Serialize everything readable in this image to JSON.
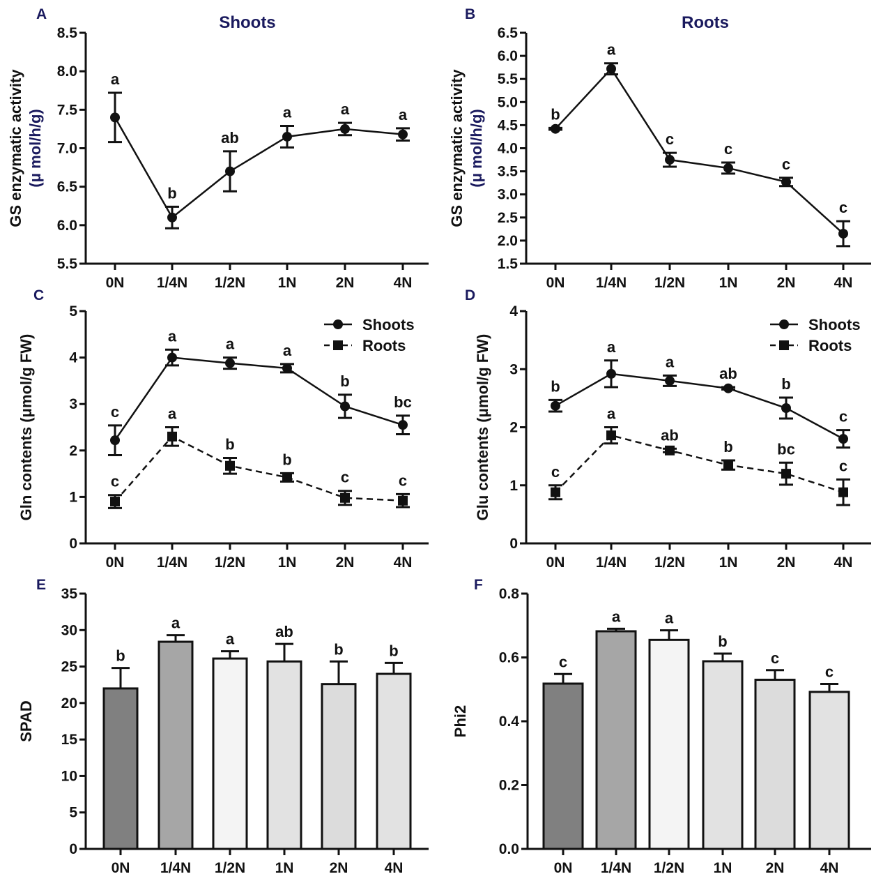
{
  "chart_data": [
    {
      "id": "A",
      "panel_label": "A",
      "type": "line",
      "title": "Shoots",
      "ylabel": "GS enzymatic activity",
      "ylabel_unit": "(μ mol/h/g)",
      "xlabel": "",
      "categories": [
        "0N",
        "1/4N",
        "1/2N",
        "1N",
        "2N",
        "4N"
      ],
      "ylim": [
        5.5,
        8.5
      ],
      "yticks": [
        "5.5",
        "6.0",
        "6.5",
        "7.0",
        "7.5",
        "8.0",
        "8.5"
      ],
      "series": [
        {
          "name": "Shoots",
          "style": "solid",
          "marker": "circle",
          "values": [
            7.4,
            6.1,
            6.7,
            7.15,
            7.25,
            7.18
          ],
          "errors": [
            0.32,
            0.14,
            0.26,
            0.14,
            0.08,
            0.08
          ],
          "letters": [
            "a",
            "b",
            "ab",
            "a",
            "a",
            "a"
          ]
        }
      ]
    },
    {
      "id": "B",
      "panel_label": "B",
      "type": "line",
      "title": "Roots",
      "ylabel": "GS enzymatic activity",
      "ylabel_unit": "(μ mol/h/g)",
      "xlabel": "",
      "categories": [
        "0N",
        "1/4N",
        "1/2N",
        "1N",
        "2N",
        "4N"
      ],
      "ylim": [
        1.5,
        6.5
      ],
      "yticks": [
        "1.5",
        "2.0",
        "2.5",
        "3.0",
        "3.5",
        "4.0",
        "4.5",
        "5.0",
        "5.5",
        "6.0",
        "6.5"
      ],
      "series": [
        {
          "name": "Roots",
          "style": "solid",
          "marker": "circle",
          "values": [
            4.42,
            5.72,
            3.75,
            3.57,
            3.27,
            2.15
          ],
          "errors": [
            0.02,
            0.12,
            0.15,
            0.12,
            0.09,
            0.27
          ],
          "letters": [
            "b",
            "a",
            "c",
            "c",
            "c",
            "c"
          ]
        }
      ]
    },
    {
      "id": "C",
      "panel_label": "C",
      "type": "line",
      "title": "",
      "ylabel": "Gln contents (μmol/g FW)",
      "ylabel_unit": "",
      "xlabel": "",
      "categories": [
        "0N",
        "1/4N",
        "1/2N",
        "1N",
        "2N",
        "4N"
      ],
      "ylim": [
        0,
        5
      ],
      "yticks": [
        "0",
        "1",
        "2",
        "3",
        "4",
        "5"
      ],
      "legend": "top-right",
      "series": [
        {
          "name": "Shoots",
          "style": "solid",
          "marker": "circle",
          "values": [
            2.22,
            4.0,
            3.88,
            3.77,
            2.95,
            2.55
          ],
          "errors": [
            0.32,
            0.17,
            0.12,
            0.09,
            0.25,
            0.2
          ],
          "letters": [
            "c",
            "a",
            "a",
            "a",
            "b",
            "bc"
          ]
        },
        {
          "name": "Roots",
          "style": "dashed",
          "marker": "square",
          "values": [
            0.9,
            2.3,
            1.67,
            1.42,
            0.98,
            0.92
          ],
          "errors": [
            0.14,
            0.2,
            0.17,
            0.09,
            0.15,
            0.14
          ],
          "letters": [
            "c",
            "a",
            "b",
            "b",
            "c",
            "c"
          ]
        }
      ]
    },
    {
      "id": "D",
      "panel_label": "D",
      "type": "line",
      "title": "",
      "ylabel": "Glu contents (μmol/g FW)",
      "ylabel_unit": "",
      "xlabel": "",
      "categories": [
        "0N",
        "1/4N",
        "1/2N",
        "1N",
        "2N",
        "4N"
      ],
      "ylim": [
        0,
        4
      ],
      "yticks": [
        "0",
        "1",
        "2",
        "3",
        "4"
      ],
      "legend": "top-right",
      "series": [
        {
          "name": "Shoots",
          "style": "solid",
          "marker": "circle",
          "values": [
            2.37,
            2.92,
            2.8,
            2.67,
            2.33,
            1.8
          ],
          "errors": [
            0.1,
            0.23,
            0.09,
            0.02,
            0.18,
            0.15
          ],
          "letters": [
            "b",
            "a",
            "a",
            "ab",
            "b",
            "c"
          ]
        },
        {
          "name": "Roots",
          "style": "dashed",
          "marker": "square",
          "values": [
            0.88,
            1.86,
            1.6,
            1.35,
            1.2,
            0.88
          ],
          "errors": [
            0.12,
            0.14,
            0.03,
            0.08,
            0.19,
            0.22
          ],
          "letters": [
            "c",
            "a",
            "ab",
            "b",
            "bc",
            "c"
          ]
        }
      ]
    },
    {
      "id": "E",
      "panel_label": "E",
      "type": "bar",
      "title": "",
      "ylabel": "SPAD",
      "ylabel_unit": "",
      "xlabel": "",
      "categories": [
        "0N",
        "1/4N",
        "1/2N",
        "1N",
        "2N",
        "4N"
      ],
      "ylim": [
        0,
        35
      ],
      "yticks": [
        "0",
        "5",
        "10",
        "15",
        "20",
        "25",
        "30",
        "35"
      ],
      "series": [
        {
          "name": "SPAD",
          "values": [
            22.0,
            28.4,
            26.1,
            25.7,
            22.6,
            24.0
          ],
          "errors": [
            2.8,
            0.9,
            1.0,
            2.4,
            3.1,
            1.5
          ],
          "letters": [
            "b",
            "a",
            "a",
            "ab",
            "b",
            "b"
          ],
          "colors": [
            "#808080",
            "#a6a6a6",
            "#f4f4f4",
            "#e2e2e2",
            "#dcdcdc",
            "#e2e2e2"
          ]
        }
      ]
    },
    {
      "id": "F",
      "panel_label": "F",
      "type": "bar",
      "title": "",
      "ylabel": "Phi2",
      "ylabel_unit": "",
      "xlabel": "",
      "categories": [
        "0N",
        "1/4N",
        "1/2N",
        "1N",
        "2N",
        "4N"
      ],
      "ylim": [
        0,
        0.8
      ],
      "yticks": [
        "0.0",
        "0.2",
        "0.4",
        "0.6",
        "0.8"
      ],
      "series": [
        {
          "name": "Phi2",
          "values": [
            0.518,
            0.682,
            0.655,
            0.588,
            0.53,
            0.492
          ],
          "errors": [
            0.03,
            0.008,
            0.03,
            0.024,
            0.03,
            0.025
          ],
          "letters": [
            "c",
            "a",
            "a",
            "b",
            "c",
            "c"
          ],
          "colors": [
            "#808080",
            "#a6a6a6",
            "#f4f4f4",
            "#e2e2e2",
            "#dcdcdc",
            "#e2e2e2"
          ]
        }
      ]
    }
  ]
}
